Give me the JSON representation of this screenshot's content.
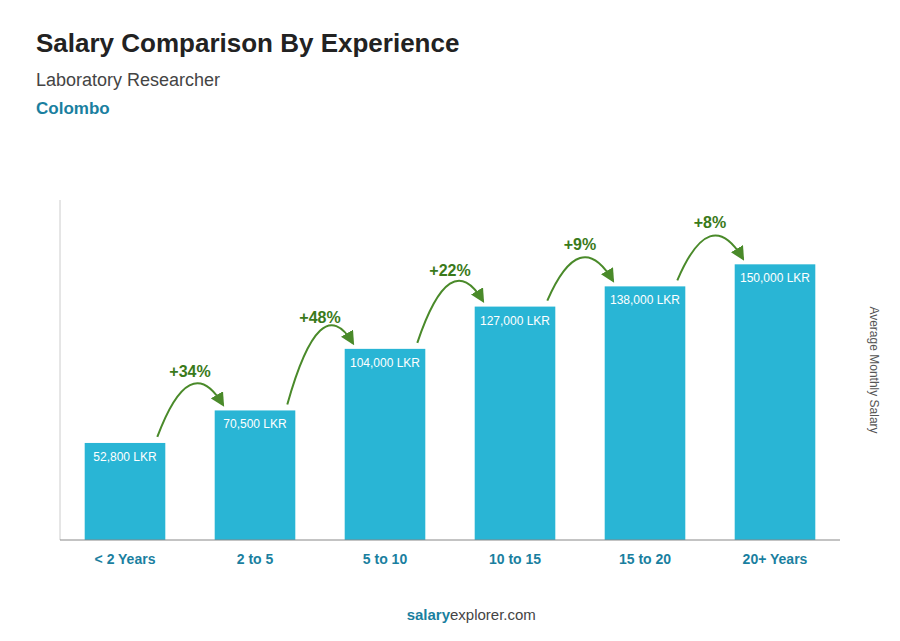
{
  "chart_data": {
    "type": "bar",
    "title": "Salary Comparison By Experience",
    "subtitle": "Laboratory Researcher",
    "annotations": [
      "Colombo",
      "salary",
      "explorer.com"
    ],
    "ylabel": "Average Monthly Salary",
    "categories": [
      "< 2 Years",
      "2 to 5",
      "5 to 10",
      "10 to 15",
      "15 to 20",
      "20+ Years"
    ],
    "values": [
      52800,
      70500,
      104000,
      127000,
      138000,
      150000
    ],
    "value_labels": [
      "52,800 LKR",
      "70,500 LKR",
      "104,000 LKR",
      "127,000 LKR",
      "138,000 LKR",
      "150,000 LKR"
    ],
    "data_labels": true,
    "changes": [
      34,
      48,
      22,
      9,
      8
    ],
    "change_labels": [
      "+34%",
      "+48%",
      "+22%",
      "+9%",
      "+8%"
    ],
    "color": "#29b5d5",
    "ylim": [
      0,
      185000
    ],
    "tick_labels": "x",
    "grid": false
  }
}
